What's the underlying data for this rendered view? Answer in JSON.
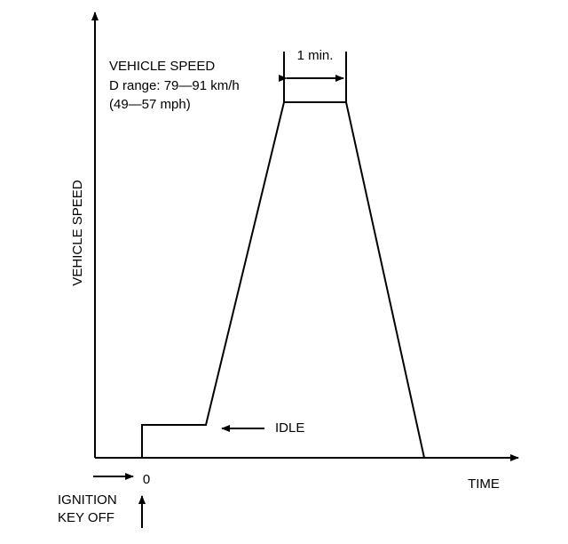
{
  "annotation": {
    "title": "VEHICLE SPEED",
    "range_kmh": "D range: 79—91 km/h",
    "range_mph": "(49—57 mph)"
  },
  "duration_label": "1 min.",
  "axes": {
    "y_label": "VEHICLE SPEED",
    "x_label": "TIME",
    "origin": "0"
  },
  "idle_label": "IDLE",
  "event": {
    "line1": "IGNITION",
    "line2": "KEY OFF"
  }
}
